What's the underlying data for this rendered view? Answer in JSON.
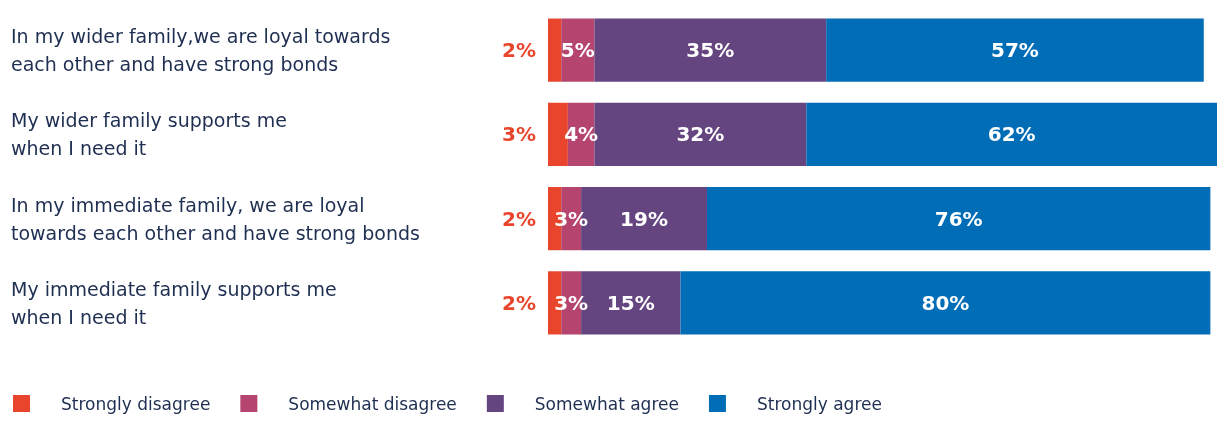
{
  "chart_data": {
    "type": "bar",
    "orientation": "horizontal",
    "stacked": true,
    "categories": [
      "In my wider family,we are loyal towards\neach other and have strong bonds",
      "My wider family supports me\nwhen I need it",
      "In my immediate family, we are loyal\ntowards each other and have strong bonds",
      "My immediate family supports me\nwhen I need it"
    ],
    "series": [
      {
        "name": "Strongly disagree",
        "color": "#e8452c",
        "values": [
          2,
          3,
          2,
          2
        ],
        "value_labels": [
          "2%",
          "3%",
          "2%",
          "2%"
        ]
      },
      {
        "name": "Somewhat disagree",
        "color": "#b5446e",
        "values": [
          5,
          4,
          3,
          3
        ],
        "value_labels": [
          "5%",
          "4%",
          "3%",
          "3%"
        ]
      },
      {
        "name": "Somewhat agree",
        "color": "#65457f",
        "values": [
          35,
          32,
          19,
          15
        ],
        "value_labels": [
          "35%",
          "32%",
          "19%",
          "15%"
        ]
      },
      {
        "name": "Strongly agree",
        "color": "#006db6",
        "values": [
          57,
          62,
          76,
          80
        ],
        "value_labels": [
          "57%",
          "62%",
          "76%",
          "80%"
        ]
      }
    ],
    "tick_labels": "y",
    "legend": "bottom"
  }
}
